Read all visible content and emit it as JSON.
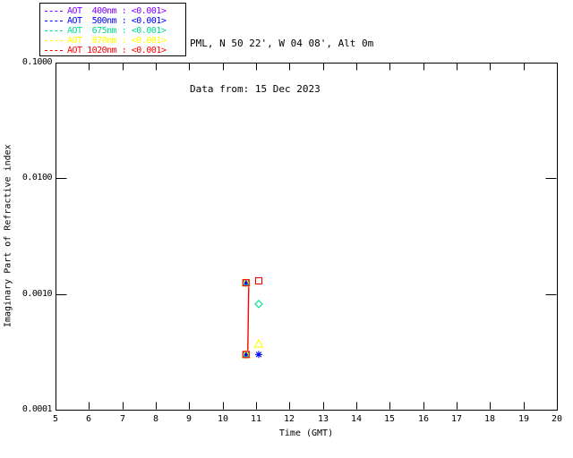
{
  "legend": {
    "items": [
      {
        "label": "AOT  400nm : <0.001>",
        "color": "#7F00FF"
      },
      {
        "label": "AOT  500nm : <0.001>",
        "color": "#0000FF"
      },
      {
        "label": "AOT  675nm : <0.001>",
        "color": "#00E08C"
      },
      {
        "label": "AOT  870nm : <0.001>",
        "color": "#FFFF00"
      },
      {
        "label": "AOT 1020nm : <0.001>",
        "color": "#FF0000"
      }
    ]
  },
  "header": {
    "line1": "PML, N 50 22', W 04 08', Alt 0m",
    "line2": "Data from: 15 Dec 2023"
  },
  "chart_data": {
    "type": "scatter",
    "title": "",
    "xlabel": "Time (GMT)",
    "ylabel": "Imaginary Part of Refractive index",
    "xlim": [
      5,
      20
    ],
    "ylim": [
      0.0001,
      0.1
    ],
    "y_scale": "log",
    "grid": false,
    "x_ticks": [
      5,
      6,
      7,
      8,
      9,
      10,
      11,
      12,
      13,
      14,
      15,
      16,
      17,
      18,
      19,
      20
    ],
    "y_tick_labels": [
      "0.1000",
      "0.0100",
      "0.0010",
      "0.0001"
    ],
    "y_tick_values": [
      0.1,
      0.01,
      0.001,
      0.0001
    ],
    "axis_color": "#000000",
    "series": [
      {
        "name": "AOT 400nm",
        "color": "#7F00FF",
        "marker": "plus",
        "points": [
          [
            10.7,
            0.00125
          ],
          [
            10.7,
            0.0003
          ]
        ]
      },
      {
        "name": "AOT 500nm",
        "color": "#0000FF",
        "marker": "asterisk",
        "points": [
          [
            10.7,
            0.00125
          ],
          [
            10.7,
            0.0003
          ],
          [
            11.08,
            0.0003
          ]
        ]
      },
      {
        "name": "AOT 675nm",
        "color": "#00E08C",
        "marker": "diamond",
        "points": [
          [
            10.7,
            0.00125
          ],
          [
            10.7,
            0.0003
          ],
          [
            11.08,
            0.00082
          ]
        ]
      },
      {
        "name": "AOT 870nm",
        "color": "#FFFF00",
        "marker": "triangle",
        "points": [
          [
            10.7,
            0.00125
          ],
          [
            10.7,
            0.0003
          ],
          [
            11.08,
            0.00037
          ]
        ]
      },
      {
        "name": "AOT 1020nm",
        "color": "#FF0000",
        "marker": "square",
        "points": [
          [
            10.7,
            0.00125
          ],
          [
            10.7,
            0.0003
          ],
          [
            11.08,
            0.0013
          ]
        ],
        "line": {
          "between": [
            0,
            1
          ]
        }
      }
    ]
  }
}
